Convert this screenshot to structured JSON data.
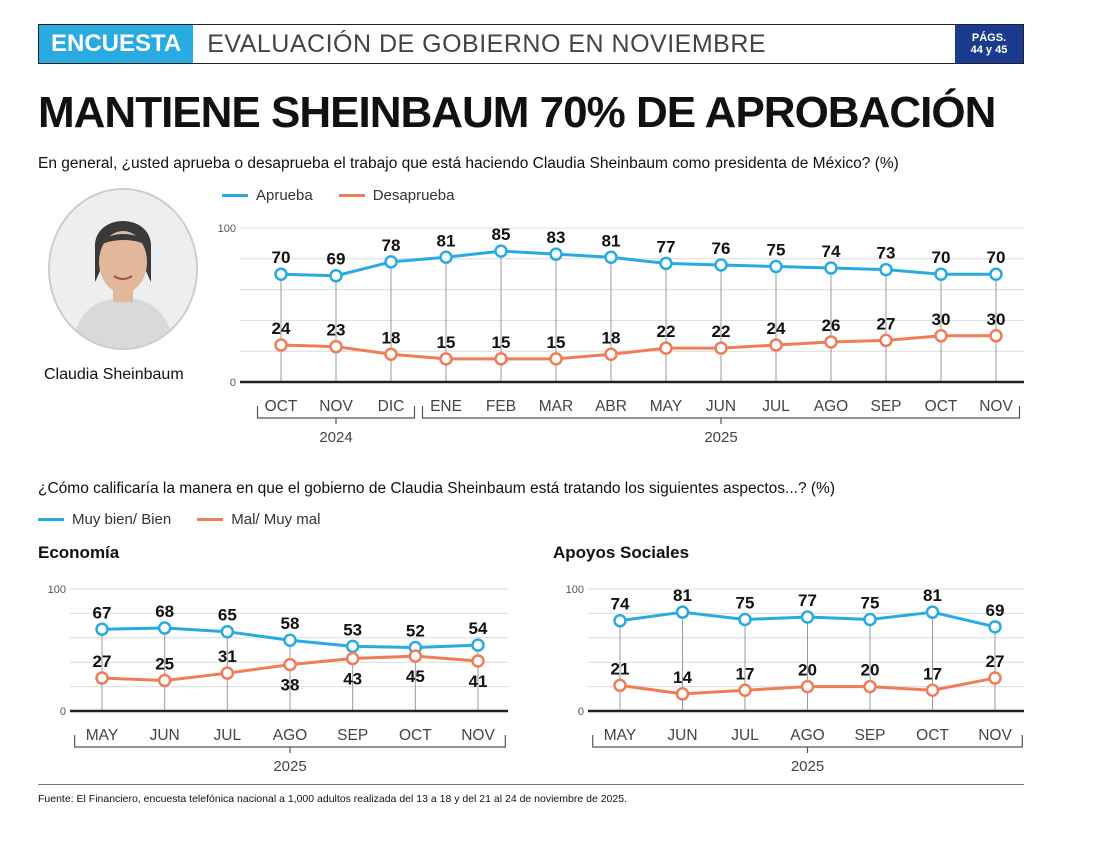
{
  "header": {
    "tag": "ENCUESTA",
    "title": "EVALUACIÓN DE GOBIERNO EN NOVIEMBRE",
    "pages_line1": "PÁGS.",
    "pages_line2": "44 y 45"
  },
  "headline": "MANTIENE SHEINBAUM 70% DE APROBACIÓN",
  "question1": "En general, ¿usted aprueba o desaprueba el trabajo que está haciendo Claudia Sheinbaum como presidenta de México? (%)",
  "question2": "¿Cómo calificaría la manera en que el gobierno de Claudia Sheinbaum está tratando los siguientes aspectos...? (%)",
  "portrait_caption": "Claudia Sheinbaum",
  "colors": {
    "blue": "#29abe2",
    "orange": "#ef7d57"
  },
  "legend1": [
    {
      "label": "Aprueba",
      "color": "#29abe2"
    },
    {
      "label": "Desaprueba",
      "color": "#ef7d57"
    }
  ],
  "legend2": [
    {
      "label": "Muy bien/ Bien",
      "color": "#29abe2"
    },
    {
      "label": "Mal/ Muy mal",
      "color": "#ef7d57"
    }
  ],
  "chart_titles": {
    "economia": "Economía",
    "apoyos": "Apoyos Sociales"
  },
  "source": "Fuente: El Financiero, encuesta telefónica nacional a 1,000 adultos realizada del 13 a 18 y del 21 al 24 de noviembre de 2025.",
  "chart_data": [
    {
      "type": "line",
      "x": [
        "OCT",
        "NOV",
        "DIC",
        "ENE",
        "FEB",
        "MAR",
        "ABR",
        "MAY",
        "JUN",
        "JUL",
        "AGO",
        "SEP",
        "OCT",
        "NOV"
      ],
      "year_groups": [
        {
          "label": "2024",
          "from": 0,
          "to": 2
        },
        {
          "label": "2025",
          "from": 3,
          "to": 13
        }
      ],
      "ylim": [
        0,
        100
      ],
      "yticks": [
        0,
        100
      ],
      "series": [
        {
          "name": "Aprueba",
          "color": "#29abe2",
          "values": [
            70,
            69,
            78,
            81,
            85,
            83,
            81,
            77,
            76,
            75,
            74,
            73,
            70,
            70
          ]
        },
        {
          "name": "Desaprueba",
          "color": "#ef7d57",
          "values": [
            24,
            23,
            18,
            15,
            15,
            15,
            18,
            22,
            22,
            24,
            26,
            27,
            30,
            30
          ]
        }
      ]
    },
    {
      "type": "line",
      "title": "Economía",
      "x": [
        "MAY",
        "JUN",
        "JUL",
        "AGO",
        "SEP",
        "OCT",
        "NOV"
      ],
      "year_groups": [
        {
          "label": "2025",
          "from": 0,
          "to": 6
        }
      ],
      "ylim": [
        0,
        100
      ],
      "yticks": [
        0,
        100
      ],
      "series": [
        {
          "name": "Muy bien/ Bien",
          "color": "#29abe2",
          "values": [
            67,
            68,
            65,
            58,
            53,
            52,
            54
          ]
        },
        {
          "name": "Mal/ Muy mal",
          "color": "#ef7d57",
          "values": [
            27,
            25,
            31,
            38,
            43,
            45,
            41
          ]
        }
      ]
    },
    {
      "type": "line",
      "title": "Apoyos Sociales",
      "x": [
        "MAY",
        "JUN",
        "JUL",
        "AGO",
        "SEP",
        "OCT",
        "NOV"
      ],
      "year_groups": [
        {
          "label": "2025",
          "from": 0,
          "to": 6
        }
      ],
      "ylim": [
        0,
        100
      ],
      "yticks": [
        0,
        100
      ],
      "series": [
        {
          "name": "Muy bien/ Bien",
          "color": "#29abe2",
          "values": [
            74,
            81,
            75,
            77,
            75,
            81,
            69
          ]
        },
        {
          "name": "Mal/ Muy mal",
          "color": "#ef7d57",
          "values": [
            21,
            14,
            17,
            20,
            20,
            17,
            27
          ]
        }
      ]
    }
  ]
}
